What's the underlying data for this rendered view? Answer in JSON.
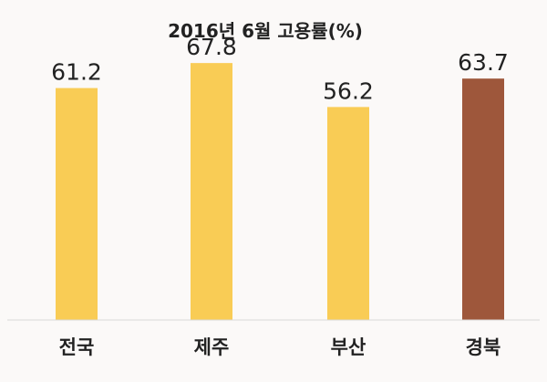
{
  "chart_data": {
    "type": "bar",
    "title": "2016년 6월 고용률(%)",
    "categories": [
      "전국",
      "제주",
      "부산",
      "경북"
    ],
    "values": [
      61.2,
      67.8,
      56.2,
      63.7
    ],
    "colors": [
      "#f9cc55",
      "#f9cc55",
      "#f9cc55",
      "#9e573b"
    ],
    "ylim": [
      0,
      70
    ],
    "grid": false,
    "legend": "none"
  },
  "colors": {
    "background": "#fbf9f8",
    "bar": "#f9cc55",
    "highlight_bar": "#9e573b",
    "axis": "#d9d9d9"
  }
}
